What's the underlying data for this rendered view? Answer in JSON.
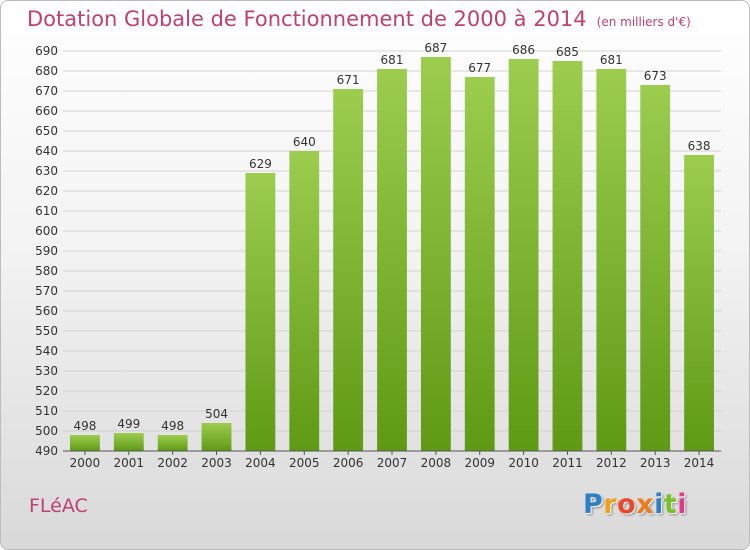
{
  "title": "Dotation Globale de Fonctionnement de 2000 à 2014",
  "unit_note": "(en milliers d'€)",
  "commune": "FLéAC",
  "logo": {
    "letters": [
      "P",
      "r",
      "o",
      "x",
      "i",
      "t",
      "i"
    ],
    "colors": [
      "#2f7fc6",
      "#f0a01c",
      "#e8492c",
      "#ee7a1a",
      "#2f7fc6",
      "#7bbf2a",
      "#e23a8a"
    ]
  },
  "colors": {
    "bar_top": "#9ccd4e",
    "bar_bottom": "#5e9a14",
    "grid": "#d3d3d3",
    "title": "#c0406f",
    "axis_text": "#333333"
  },
  "chart_data": {
    "type": "bar",
    "categories": [
      "2000",
      "2001",
      "2002",
      "2003",
      "2004",
      "2005",
      "2006",
      "2007",
      "2008",
      "2009",
      "2010",
      "2011",
      "2012",
      "2013",
      "2014"
    ],
    "values": [
      498,
      499,
      498,
      504,
      629,
      640,
      671,
      681,
      687,
      677,
      686,
      685,
      681,
      673,
      638
    ],
    "ylim": [
      490,
      690
    ],
    "ytick_step": 10,
    "grid": true
  }
}
